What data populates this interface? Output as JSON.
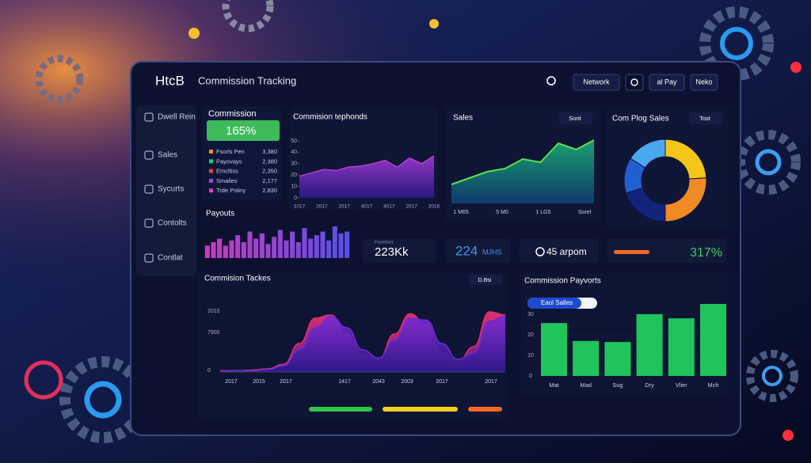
{
  "header": {
    "logo": "HtcB",
    "title": "Commission Tracking",
    "buttons": [
      "Network",
      "al Pay",
      "Neko"
    ]
  },
  "sidebar": [
    "Dwell Rein",
    "Sales",
    "Sycurts",
    "Contolts",
    "Contlat"
  ],
  "commission_card": {
    "title": "Commission",
    "value": "165%",
    "items": [
      {
        "label": "Fsorls Pen",
        "value": "3,380",
        "color": "#f08a24"
      },
      {
        "label": "Payovays",
        "value": "2,380",
        "color": "#2ec46a"
      },
      {
        "label": "Emcltiss",
        "value": "2,350",
        "color": "#e8453c"
      },
      {
        "label": "Smalies",
        "value": "2,177",
        "color": "#8a4fe0"
      },
      {
        "label": "Trde Psliny",
        "value": "2,830",
        "color": "#e040b0"
      }
    ]
  },
  "trends_chart": {
    "title": "Commision tephonds",
    "ylim": [
      0,
      50
    ],
    "yticks": [
      0,
      10,
      20,
      30,
      40,
      50
    ],
    "x_labels": [
      "1017",
      "2017",
      "2017",
      "4017",
      "4017",
      "2017",
      "2016"
    ],
    "values": [
      19,
      22,
      25,
      24,
      27,
      28,
      30,
      33,
      27,
      35,
      30,
      37
    ]
  },
  "sales_chart": {
    "title": "Sales",
    "button": "Sorit",
    "x_labels": [
      "1 M65",
      "5 M0",
      "1 LG5",
      "Sorel"
    ],
    "values": [
      12,
      16,
      20,
      22,
      28,
      26,
      38,
      34,
      40
    ]
  },
  "donut_chart": {
    "title": "Com Plog Sales",
    "button": "Tost",
    "values": [
      24,
      26,
      20,
      14,
      16
    ],
    "colors": [
      "#f5c518",
      "#f08a24",
      "#14237a",
      "#1f5fd0",
      "#4aa8f0"
    ]
  },
  "payouts_chart": {
    "title": "Payouts",
    "values": [
      14,
      18,
      22,
      14,
      20,
      26,
      18,
      30,
      22,
      28,
      16,
      24,
      32,
      20,
      30,
      18,
      34,
      22,
      26,
      30,
      20,
      36,
      28,
      30
    ]
  },
  "stats": [
    {
      "caption": "Fsoorlsez",
      "value": "223Kk"
    },
    {
      "value": "224",
      "unit": "MJHS"
    },
    {
      "value": "45 arpom"
    },
    {
      "value": "317%"
    }
  ],
  "tracks_chart": {
    "title": "Commision Tackes",
    "button": "D.Bsi",
    "y_labels": [
      "2010",
      "7900",
      "0"
    ],
    "x_labels": [
      "2017",
      "2015",
      "2017",
      "1417",
      "2043",
      "2003",
      "2017",
      "2017"
    ],
    "series": [
      {
        "color": "#e0306a",
        "values": [
          2,
          2,
          3,
          5,
          12,
          45,
          85,
          90,
          60,
          25,
          20,
          60,
          92,
          75,
          30,
          15,
          40,
          95,
          90
        ]
      },
      {
        "color": "#6a2bd0",
        "values": [
          1,
          2,
          2,
          4,
          10,
          35,
          70,
          88,
          70,
          35,
          22,
          50,
          85,
          82,
          45,
          20,
          30,
          80,
          88
        ]
      }
    ]
  },
  "payvorts_chart": {
    "title": "Commission Payvorts",
    "filter": "Eaol Salles",
    "ylim": [
      0,
      36
    ],
    "yticks": [
      0,
      10,
      20,
      30
    ],
    "categories": [
      "Mat",
      "Mad",
      "Sug",
      "Dry",
      "Vlier",
      "Mch"
    ],
    "values": [
      25.7,
      17,
      16.5,
      30,
      28,
      35
    ],
    "color": "#1fc45a"
  }
}
